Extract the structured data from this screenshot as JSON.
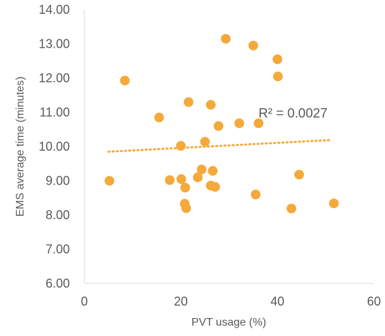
{
  "chart_data": {
    "type": "scatter",
    "title": "",
    "xlabel": "PVT usage (%)",
    "ylabel": "EMS average time (minutes)",
    "xlim": [
      0,
      60
    ],
    "ylim": [
      6.0,
      14.0
    ],
    "x_ticks": [
      "0",
      "20",
      "40",
      "60"
    ],
    "y_ticks": [
      "6.00",
      "7.00",
      "8.00",
      "9.00",
      "10.00",
      "11.00",
      "12.00",
      "13.00",
      "14.00"
    ],
    "grid": false,
    "legend": "none",
    "marker_color": "#F4A93B",
    "trendline": {
      "type": "linear",
      "style": "dotted",
      "color": "#F4A93B",
      "x": [
        5,
        51
      ],
      "y": [
        9.85,
        10.19
      ],
      "label": "R² = 0.0027"
    },
    "points": [
      {
        "x": 5.2,
        "y": 9.0
      },
      {
        "x": 8.4,
        "y": 11.93
      },
      {
        "x": 15.5,
        "y": 10.85
      },
      {
        "x": 17.7,
        "y": 9.02
      },
      {
        "x": 20.0,
        "y": 10.02
      },
      {
        "x": 20.1,
        "y": 9.05
      },
      {
        "x": 20.8,
        "y": 8.33
      },
      {
        "x": 20.9,
        "y": 8.8
      },
      {
        "x": 21.1,
        "y": 8.2
      },
      {
        "x": 21.6,
        "y": 11.3
      },
      {
        "x": 23.5,
        "y": 9.1
      },
      {
        "x": 24.3,
        "y": 9.33
      },
      {
        "x": 25.0,
        "y": 10.14
      },
      {
        "x": 26.2,
        "y": 11.22
      },
      {
        "x": 26.2,
        "y": 8.86
      },
      {
        "x": 26.6,
        "y": 9.29
      },
      {
        "x": 27.1,
        "y": 8.82
      },
      {
        "x": 27.8,
        "y": 10.6
      },
      {
        "x": 29.3,
        "y": 13.15
      },
      {
        "x": 32.1,
        "y": 10.68
      },
      {
        "x": 35.0,
        "y": 12.95
      },
      {
        "x": 35.5,
        "y": 8.6
      },
      {
        "x": 36.1,
        "y": 10.68
      },
      {
        "x": 40.0,
        "y": 12.55
      },
      {
        "x": 40.1,
        "y": 12.05
      },
      {
        "x": 42.9,
        "y": 8.19
      },
      {
        "x": 44.5,
        "y": 9.18
      },
      {
        "x": 51.7,
        "y": 8.34
      }
    ]
  }
}
